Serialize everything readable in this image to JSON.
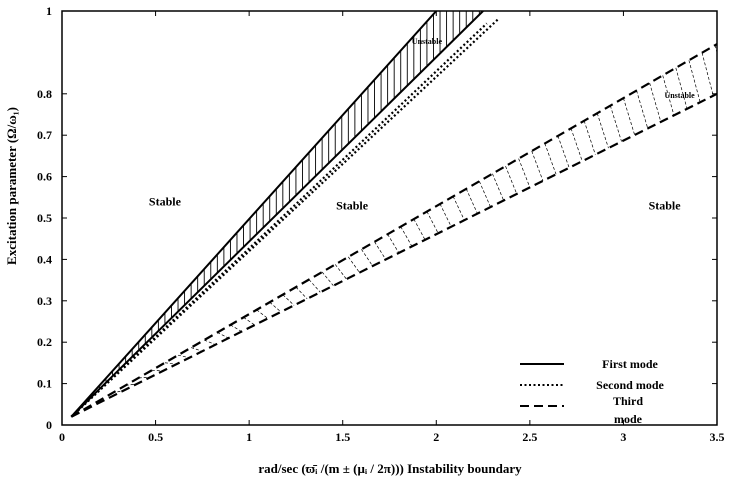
{
  "chart_data": {
    "type": "line",
    "title": "",
    "xlabel": "rad/sec (ϖ̄ᵢ /(m ± (μᵢ / 2π))) Instability boundary",
    "ylabel": "Excitation parameter (Ω/ω₁)",
    "xlim": [
      0,
      3.5
    ],
    "ylim": [
      0,
      1
    ],
    "x_ticks": [
      "0",
      "0.5",
      "1",
      "1.5",
      "2",
      "2.5",
      "3",
      "3.5"
    ],
    "y_ticks": [
      "0",
      "0.1",
      "0.2",
      "0.3",
      "0.4",
      "0.5",
      "0.6",
      "0.7",
      "0.8",
      "1"
    ],
    "grid": false,
    "legend_position": "bottom-right",
    "series": [
      {
        "name": "First mode",
        "style": "solid",
        "x": [
          0.05,
          2.0
        ],
        "y": [
          0.02,
          1.0
        ]
      },
      {
        "name": "First mode",
        "style": "solid",
        "x": [
          0.05,
          2.25
        ],
        "y": [
          0.02,
          1.0
        ]
      },
      {
        "name": "Second mode",
        "style": "dotted",
        "x": [
          0.05,
          2.27
        ],
        "y": [
          0.02,
          0.97
        ]
      },
      {
        "name": "Second mode",
        "style": "dotted",
        "x": [
          0.05,
          2.33
        ],
        "y": [
          0.02,
          0.98
        ]
      },
      {
        "name": "Third mode",
        "style": "dashed",
        "x": [
          0.05,
          3.5
        ],
        "y": [
          0.02,
          0.92
        ]
      },
      {
        "name": "Third mode",
        "style": "dashed",
        "x": [
          0.05,
          3.5
        ],
        "y": [
          0.02,
          0.8
        ]
      }
    ],
    "annotations": [
      {
        "text": "Stable",
        "x": 0.55,
        "y": 0.53,
        "size": "normal"
      },
      {
        "text": "Stable",
        "x": 1.55,
        "y": 0.52,
        "size": "normal"
      },
      {
        "text": "Stable",
        "x": 3.22,
        "y": 0.52,
        "size": "normal"
      },
      {
        "text": "Unstable",
        "x": 1.95,
        "y": 0.92,
        "size": "small"
      },
      {
        "text": "Unstable",
        "x": 3.3,
        "y": 0.79,
        "size": "small"
      }
    ],
    "legend": [
      {
        "label": "First mode",
        "style": "solid"
      },
      {
        "label": "Second mode",
        "style": "dotted"
      },
      {
        "label": "Third mode",
        "style": "dashed"
      }
    ]
  }
}
